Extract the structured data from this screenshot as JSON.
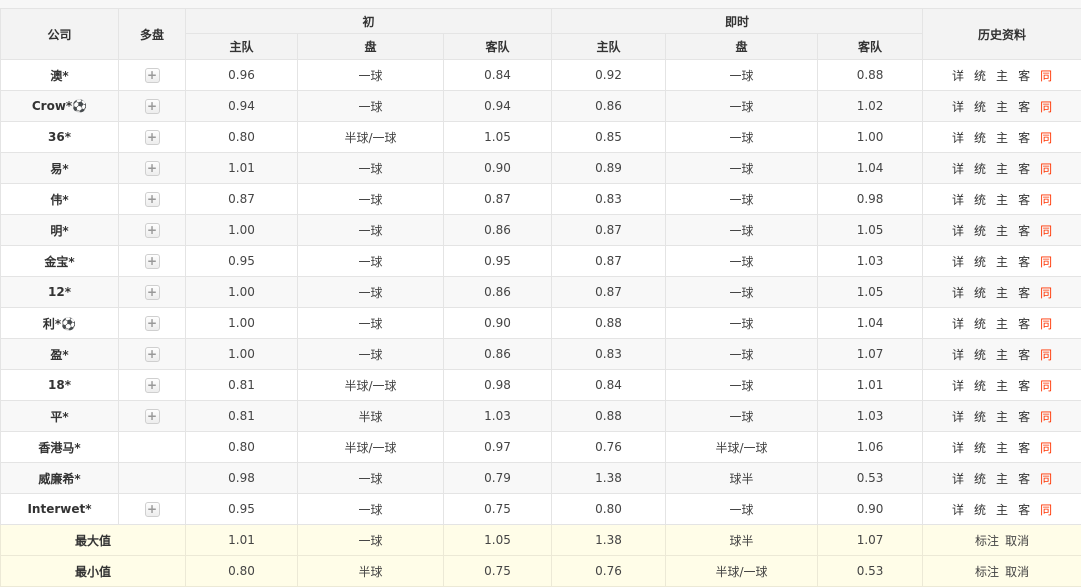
{
  "table": {
    "headers": {
      "company": "公司",
      "multi": "多盘",
      "initial_group": "初",
      "live_group": "即时",
      "home": "主队",
      "handicap": "盘",
      "away": "客队",
      "history": "历史资料"
    },
    "plus_label": "+",
    "history_links": [
      "详",
      "统",
      "主",
      "客",
      "同"
    ],
    "summary_links": [
      "标注",
      "取消"
    ],
    "rows": [
      {
        "company": "澳*",
        "multi": true,
        "init": [
          "0.96",
          "一球",
          "0.84"
        ],
        "live": [
          "0.92",
          "一球",
          "0.88"
        ]
      },
      {
        "company": "Crow*⚽",
        "multi": true,
        "init": [
          "0.94",
          "一球",
          "0.94"
        ],
        "live": [
          "0.86",
          "一球",
          "1.02"
        ]
      },
      {
        "company": "36*",
        "multi": true,
        "init": [
          "0.80",
          "半球/一球",
          "1.05"
        ],
        "live": [
          "0.85",
          "一球",
          "1.00"
        ]
      },
      {
        "company": "易*",
        "multi": true,
        "init": [
          "1.01",
          "一球",
          "0.90"
        ],
        "live": [
          "0.89",
          "一球",
          "1.04"
        ]
      },
      {
        "company": "伟*",
        "multi": true,
        "init": [
          "0.87",
          "一球",
          "0.87"
        ],
        "live": [
          "0.83",
          "一球",
          "0.98"
        ]
      },
      {
        "company": "明*",
        "multi": true,
        "init": [
          "1.00",
          "一球",
          "0.86"
        ],
        "live": [
          "0.87",
          "一球",
          "1.05"
        ]
      },
      {
        "company": "金宝*",
        "multi": true,
        "init": [
          "0.95",
          "一球",
          "0.95"
        ],
        "live": [
          "0.87",
          "一球",
          "1.03"
        ]
      },
      {
        "company": "12*",
        "multi": true,
        "init": [
          "1.00",
          "一球",
          "0.86"
        ],
        "live": [
          "0.87",
          "一球",
          "1.05"
        ]
      },
      {
        "company": "利*⚽",
        "multi": true,
        "init": [
          "1.00",
          "一球",
          "0.90"
        ],
        "live": [
          "0.88",
          "一球",
          "1.04"
        ]
      },
      {
        "company": "盈*",
        "multi": true,
        "init": [
          "1.00",
          "一球",
          "0.86"
        ],
        "live": [
          "0.83",
          "一球",
          "1.07"
        ]
      },
      {
        "company": "18*",
        "multi": true,
        "init": [
          "0.81",
          "半球/一球",
          "0.98"
        ],
        "live": [
          "0.84",
          "一球",
          "1.01"
        ]
      },
      {
        "company": "平*",
        "multi": true,
        "init": [
          "0.81",
          "半球",
          "1.03"
        ],
        "live": [
          "0.88",
          "一球",
          "1.03"
        ]
      },
      {
        "company": "香港马*",
        "multi": false,
        "init": [
          "0.80",
          "半球/一球",
          "0.97"
        ],
        "live": [
          "0.76",
          "半球/一球",
          "1.06"
        ]
      },
      {
        "company": "威廉希*",
        "multi": false,
        "init": [
          "0.98",
          "一球",
          "0.79"
        ],
        "live": [
          "1.38",
          "球半",
          "0.53"
        ]
      },
      {
        "company": "Interwet*",
        "multi": true,
        "init": [
          "0.95",
          "一球",
          "0.75"
        ],
        "live": [
          "0.80",
          "一球",
          "0.90"
        ]
      }
    ],
    "summary_rows": [
      {
        "label": "最大值",
        "init": [
          "1.01",
          "一球",
          "1.05"
        ],
        "live": [
          "1.38",
          "球半",
          "1.07"
        ]
      },
      {
        "label": "最小值",
        "init": [
          "0.80",
          "半球",
          "0.75"
        ],
        "live": [
          "0.76",
          "半球/一球",
          "0.53"
        ]
      }
    ],
    "colors": {
      "accent_red": "#ff3300",
      "header_bg": "#f3f3f3",
      "alt_row_bg": "#f8f8f8",
      "summary_bg": "#fffde8"
    }
  }
}
